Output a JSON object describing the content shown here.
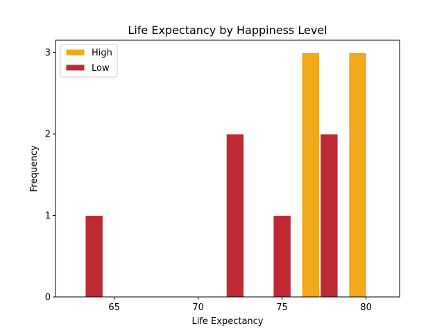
{
  "chart_data": {
    "type": "bar",
    "title": "Life Expectancy by Happiness Level",
    "xlabel": "Life Expectancy",
    "ylabel": "Frequency",
    "xlim": [
      61.5,
      82
    ],
    "ylim": [
      0,
      3.15
    ],
    "xticks": [
      65,
      70,
      75,
      80
    ],
    "yticks": [
      0,
      1,
      2,
      3
    ],
    "grid": false,
    "legend_position": "top-left",
    "bar_width": 1.05,
    "series": [
      {
        "name": "High",
        "color": "#f2a81d",
        "bars": [
          {
            "x": 76.7,
            "value": 3
          },
          {
            "x": 79.5,
            "value": 3
          }
        ]
      },
      {
        "name": "Low",
        "color": "#be2a32",
        "bars": [
          {
            "x": 63.8,
            "value": 1
          },
          {
            "x": 72.2,
            "value": 2
          },
          {
            "x": 75.0,
            "value": 1
          },
          {
            "x": 77.8,
            "value": 2
          }
        ]
      }
    ]
  }
}
